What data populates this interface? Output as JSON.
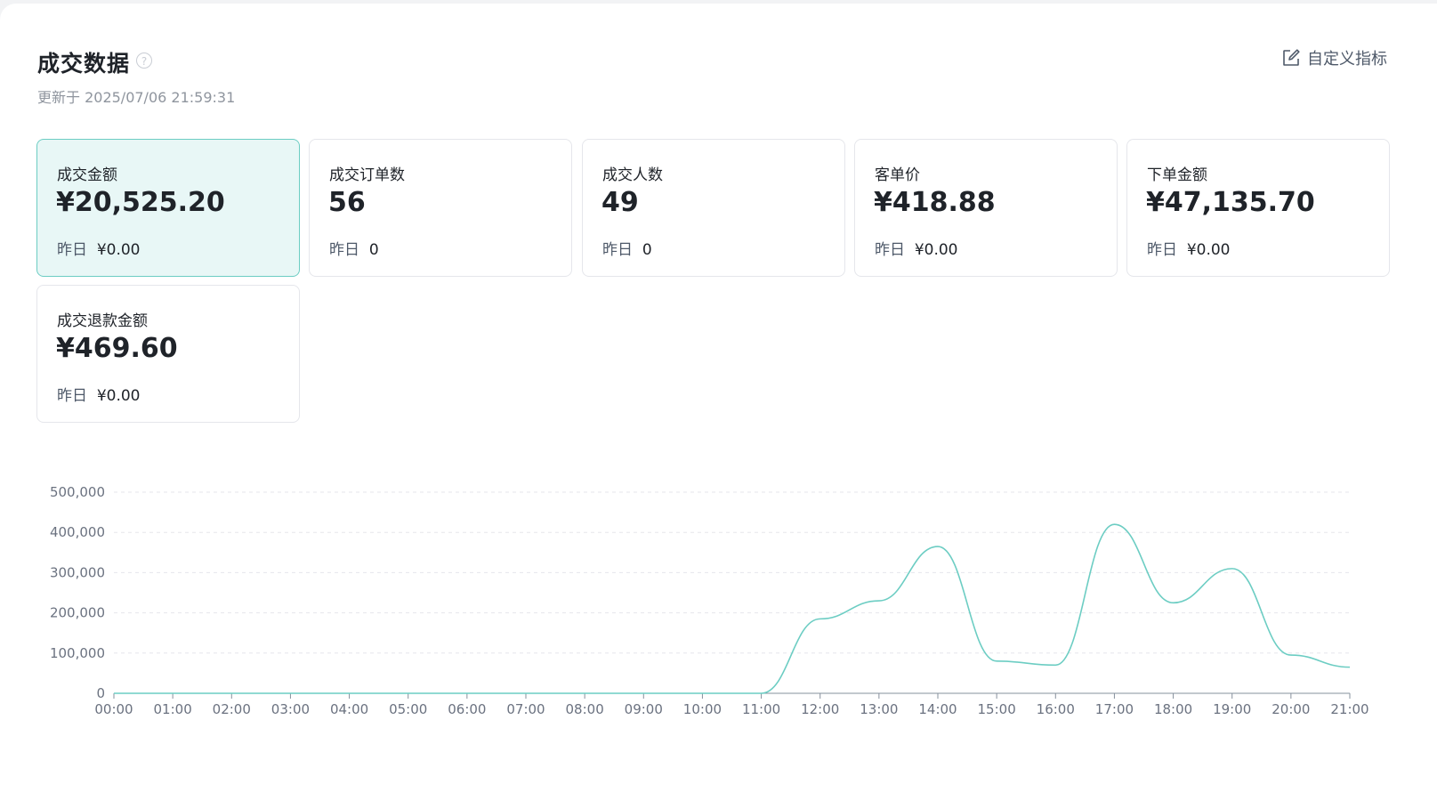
{
  "header": {
    "title": "成交数据",
    "help_icon": "?",
    "updated": "更新于 2025/07/06 21:59:31",
    "custom_button": "自定义指标"
  },
  "metrics": [
    {
      "label": "成交金额",
      "value": "¥20,525.20",
      "prev_label": "昨日",
      "prev_value": "¥0.00",
      "selected": true
    },
    {
      "label": "成交订单数",
      "value": "56",
      "prev_label": "昨日",
      "prev_value": "0",
      "selected": false
    },
    {
      "label": "成交人数",
      "value": "49",
      "prev_label": "昨日",
      "prev_value": "0",
      "selected": false
    },
    {
      "label": "客单价",
      "value": "¥418.88",
      "prev_label": "昨日",
      "prev_value": "¥0.00",
      "selected": false
    },
    {
      "label": "下单金额",
      "value": "¥47,135.70",
      "prev_label": "昨日",
      "prev_value": "¥0.00",
      "selected": false
    },
    {
      "label": "成交退款金额",
      "value": "¥469.60",
      "prev_label": "昨日",
      "prev_value": "¥0.00",
      "selected": false
    }
  ],
  "colors": {
    "accent": "#6ccdc3",
    "selected_card_bg": "#e8f7f6",
    "line": "#6ccdc3",
    "grid": "#e5e6eb"
  },
  "chart_data": {
    "type": "line",
    "x": [
      "00:00",
      "01:00",
      "02:00",
      "03:00",
      "04:00",
      "05:00",
      "06:00",
      "07:00",
      "08:00",
      "09:00",
      "10:00",
      "11:00",
      "12:00",
      "13:00",
      "14:00",
      "15:00",
      "16:00",
      "17:00",
      "18:00",
      "19:00",
      "20:00",
      "21:00"
    ],
    "series": [
      {
        "values": [
          0,
          0,
          0,
          0,
          0,
          0,
          0,
          0,
          0,
          0,
          0,
          0,
          185000,
          230000,
          365000,
          80000,
          70000,
          420000,
          225000,
          310000,
          95000,
          65000
        ]
      }
    ],
    "yticks": [
      "0",
      "100,000",
      "200,000",
      "300,000",
      "400,000",
      "500,000"
    ],
    "ylim": [
      0,
      500000
    ],
    "grid": true,
    "legend": "none"
  }
}
